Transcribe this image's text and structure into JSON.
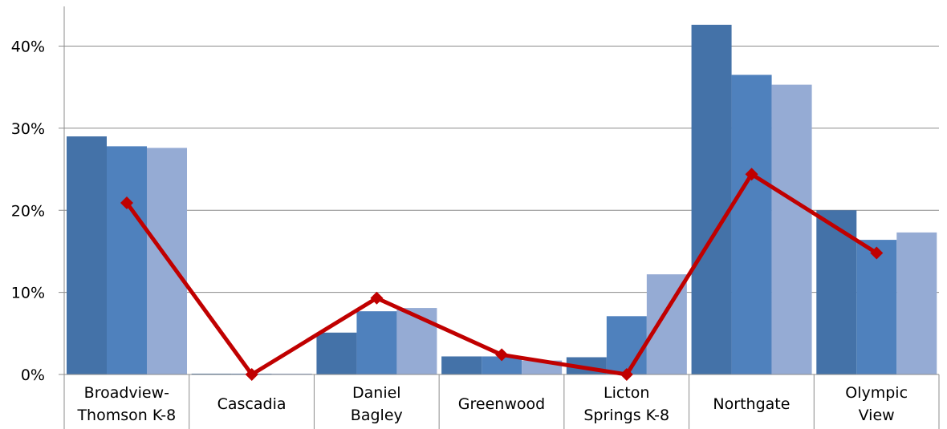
{
  "chart_data": {
    "type": "bar",
    "categories": [
      [
        "Broadview-",
        "Thomson K-8"
      ],
      [
        "Cascadia"
      ],
      [
        "Daniel",
        "Bagley"
      ],
      [
        "Greenwood"
      ],
      [
        "Licton",
        "Springs K-8"
      ],
      [
        "Northgate"
      ],
      [
        "Olympic",
        "View"
      ]
    ],
    "series": [
      {
        "kind": "bar",
        "color": "#4472a8",
        "values": [
          29.0,
          0.1,
          5.1,
          2.2,
          2.1,
          42.6,
          20.0
        ]
      },
      {
        "kind": "bar",
        "color": "#4f81bd",
        "values": [
          27.8,
          0.1,
          7.7,
          2.2,
          7.1,
          36.5,
          16.4
        ]
      },
      {
        "kind": "bar",
        "color": "#95abd4",
        "values": [
          27.6,
          0.1,
          8.1,
          1.7,
          12.2,
          35.3,
          17.3
        ]
      },
      {
        "kind": "line",
        "color": "#c00000",
        "values": [
          20.9,
          0.0,
          9.3,
          2.4,
          0.0,
          24.4,
          14.8
        ]
      }
    ],
    "yticks": [
      "0%",
      "10%",
      "20%",
      "30%",
      "40%"
    ],
    "ylim": [
      0,
      45
    ],
    "grid": true
  }
}
